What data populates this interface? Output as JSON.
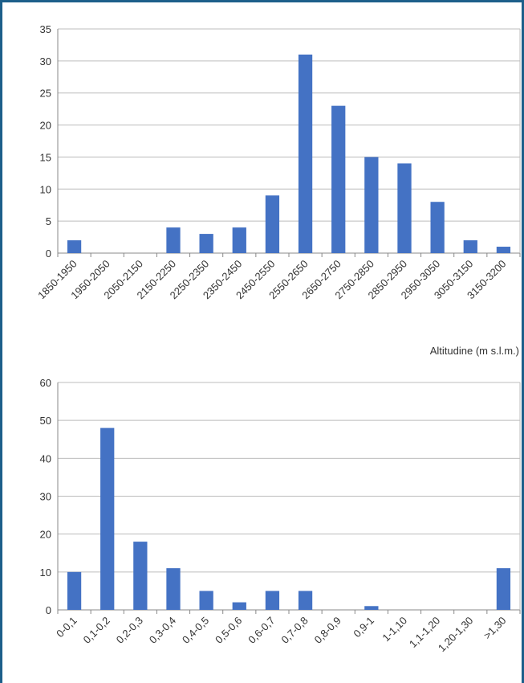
{
  "chart_data": [
    {
      "type": "bar",
      "categories": [
        "1850-1950",
        "1950-2050",
        "2050-2150",
        "2150-2250",
        "2250-2350",
        "2350-2450",
        "2450-2550",
        "2550-2650",
        "2650-2750",
        "2750-2850",
        "2850-2950",
        "2950-3050",
        "3050-3150",
        "3150-3200"
      ],
      "values": [
        2,
        0,
        0,
        4,
        3,
        4,
        9,
        31,
        23,
        15,
        14,
        8,
        2,
        1
      ],
      "ylim": [
        0,
        35
      ],
      "yticks": [
        0,
        5,
        10,
        15,
        20,
        25,
        30,
        35
      ],
      "xlabel": "Altitudine (m s.l.m.)",
      "grid": true,
      "color": "#4472c4"
    },
    {
      "type": "bar",
      "categories": [
        "0-0,1",
        "0,1-0,2",
        "0,2-0,3",
        "0,3-0,4",
        "0,4-0,5",
        "0,5-0,6",
        "0,6-0,7",
        "0,7-0,8",
        "0,8-0,9",
        "0,9-1",
        "1-1,10",
        "1,1-1,20",
        "1,20-1,30",
        ">1,30"
      ],
      "values": [
        10,
        48,
        18,
        11,
        5,
        2,
        5,
        5,
        0,
        1,
        0,
        0,
        0,
        11
      ],
      "ylim": [
        0,
        60
      ],
      "yticks": [
        0,
        10,
        20,
        30,
        40,
        50,
        60
      ],
      "xlabel": "",
      "grid": true,
      "color": "#4472c4"
    }
  ]
}
